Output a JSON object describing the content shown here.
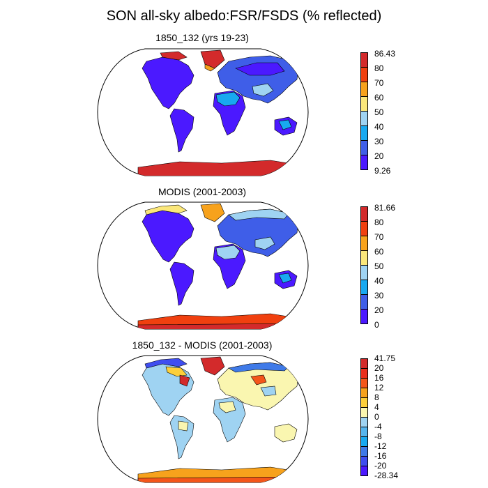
{
  "title": "SON all-sky albedo:FSR/FSDS (% reflected)",
  "colors": {
    "ocean": "#ffffff",
    "coast": "#000000",
    "violet": "#4b19ff",
    "blue": "#3f5ee8",
    "mid_blue": "#18a9f0",
    "light_blue": "#9fd3f2",
    "yellow": "#fbe77a",
    "orange": "#f7a21c",
    "red_orange": "#f0400f",
    "red": "#d32a2b"
  },
  "panels": [
    {
      "title": "1850_132 (yrs 19-23)",
      "colorbar": {
        "labels": [
          "86.43",
          "80",
          "70",
          "60",
          "50",
          "40",
          "30",
          "20",
          "9.26"
        ],
        "colors": [
          "#d32a2b",
          "#f0400f",
          "#f7a21c",
          "#fbe77a",
          "#9fd3f2",
          "#18a9f0",
          "#3f5ee8",
          "#4b19ff"
        ]
      }
    },
    {
      "title": "MODIS (2001-2003)",
      "colorbar": {
        "labels": [
          "81.66",
          "80",
          "70",
          "60",
          "50",
          "40",
          "30",
          "20",
          "0"
        ],
        "colors": [
          "#d32a2b",
          "#f0400f",
          "#f7a21c",
          "#fbe77a",
          "#9fd3f2",
          "#18a9f0",
          "#3f5ee8",
          "#4b19ff"
        ]
      }
    },
    {
      "title": "1850_132 - MODIS (2001-2003)",
      "colorbar": {
        "labels": [
          "41.75",
          "20",
          "16",
          "12",
          "8",
          "4",
          "0",
          "-4",
          "-8",
          "-12",
          "-16",
          "-20",
          "-28.34"
        ],
        "colors": [
          "#d32a2b",
          "#ea2e1c",
          "#f4561a",
          "#f7a21c",
          "#fccf3a",
          "#faf6b0",
          "#9fd3f2",
          "#55b5ee",
          "#18a9f0",
          "#3f7ae8",
          "#3f4ef0",
          "#4b19ff"
        ]
      }
    }
  ]
}
